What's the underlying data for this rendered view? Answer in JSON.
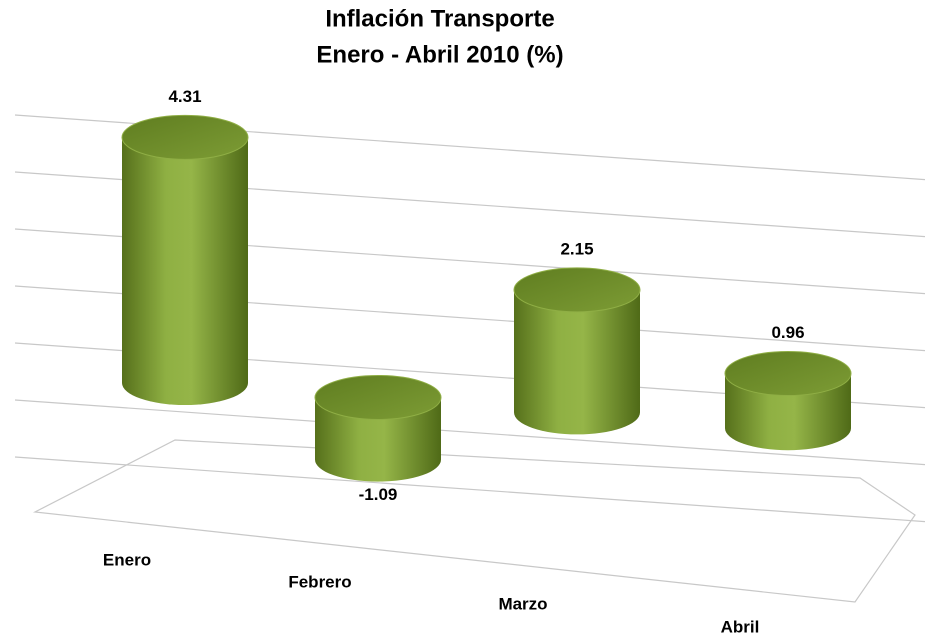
{
  "chart_data": {
    "type": "bar3d",
    "title": [
      "Inflación Transporte",
      "Enero - Abril 2010 (%)"
    ],
    "categories": [
      "Enero",
      "Febrero",
      "Marzo",
      "Abril"
    ],
    "values": [
      4.31,
      -1.09,
      2.15,
      0.96
    ],
    "color": "#7a9a32",
    "ylim": [
      -1,
      5
    ],
    "grid": true
  }
}
